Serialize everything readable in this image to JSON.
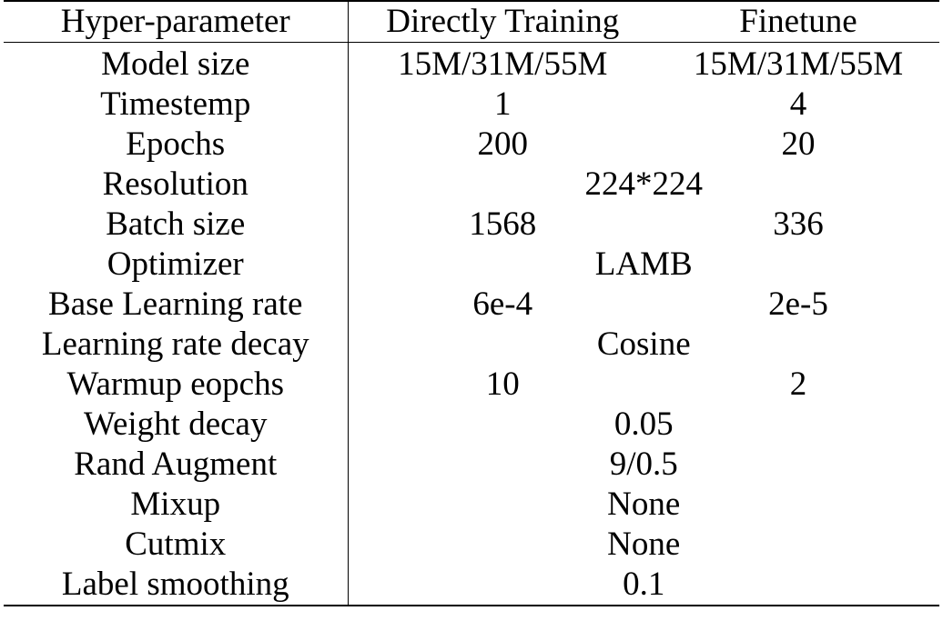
{
  "table": {
    "headers": [
      "Hyper-parameter",
      "Directly Training",
      "Finetune"
    ],
    "rows": [
      {
        "param": "Model size",
        "direct": "15M/31M/55M",
        "finetune": "15M/31M/55M",
        "shared": null
      },
      {
        "param": "Timestemp",
        "direct": "1",
        "finetune": "4",
        "shared": null
      },
      {
        "param": "Epochs",
        "direct": "200",
        "finetune": "20",
        "shared": null
      },
      {
        "param": "Resolution",
        "direct": null,
        "finetune": null,
        "shared": "224*224"
      },
      {
        "param": "Batch size",
        "direct": "1568",
        "finetune": "336",
        "shared": null
      },
      {
        "param": "Optimizer",
        "direct": null,
        "finetune": null,
        "shared": "LAMB"
      },
      {
        "param": "Base Learning rate",
        "direct": "6e-4",
        "finetune": "2e-5",
        "shared": null
      },
      {
        "param": "Learning rate decay",
        "direct": null,
        "finetune": null,
        "shared": "Cosine"
      },
      {
        "param": "Warmup eopchs",
        "direct": "10",
        "finetune": "2",
        "shared": null
      },
      {
        "param": "Weight decay",
        "direct": null,
        "finetune": null,
        "shared": "0.05"
      },
      {
        "param": "Rand Augment",
        "direct": null,
        "finetune": null,
        "shared": "9/0.5"
      },
      {
        "param": "Mixup",
        "direct": null,
        "finetune": null,
        "shared": "None"
      },
      {
        "param": "Cutmix",
        "direct": null,
        "finetune": null,
        "shared": "None"
      },
      {
        "param": "Label smoothing",
        "direct": null,
        "finetune": null,
        "shared": "0.1"
      }
    ]
  }
}
